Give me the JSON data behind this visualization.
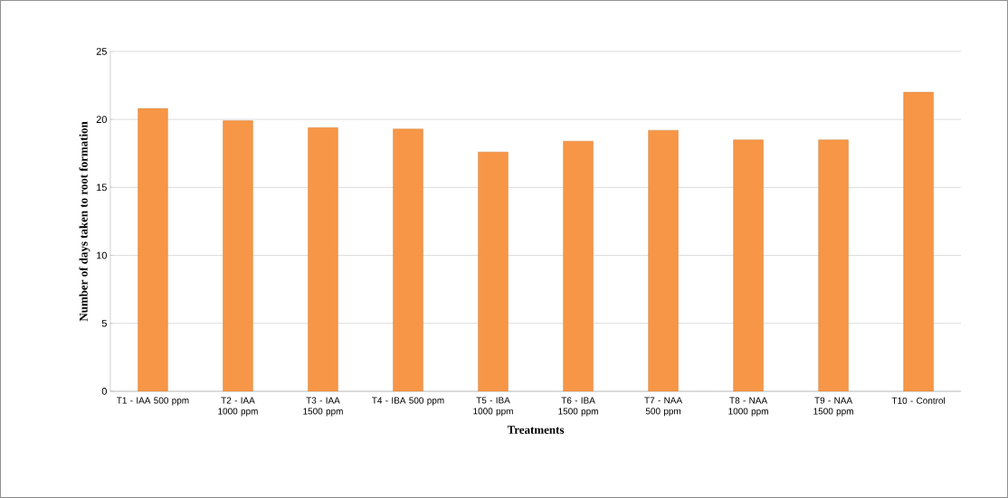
{
  "chart_data": {
    "type": "bar",
    "xlabel": "Treatments",
    "ylabel": "Number of days taken to root formation",
    "categories": [
      "T1 - IAA 500 ppm",
      "T2 - IAA 1000 ppm",
      "T3 - IAA 1500 ppm",
      "T4 - IBA 500 ppm",
      "T5 - IBA 1000 ppm",
      "T6 - IBA 1500 ppm",
      "T7 - NAA 500 ppm",
      "T8 - NAA 1000 ppm",
      "T9 - NAA 1500 ppm",
      "T10 - Control"
    ],
    "values": [
      20.8,
      19.9,
      19.4,
      19.3,
      17.6,
      18.4,
      19.2,
      18.5,
      18.5,
      22.0
    ],
    "color": "#f79646",
    "ylim": [
      0,
      25
    ],
    "yticks": [
      0,
      5,
      10,
      15,
      20,
      25
    ],
    "grid": "y"
  }
}
